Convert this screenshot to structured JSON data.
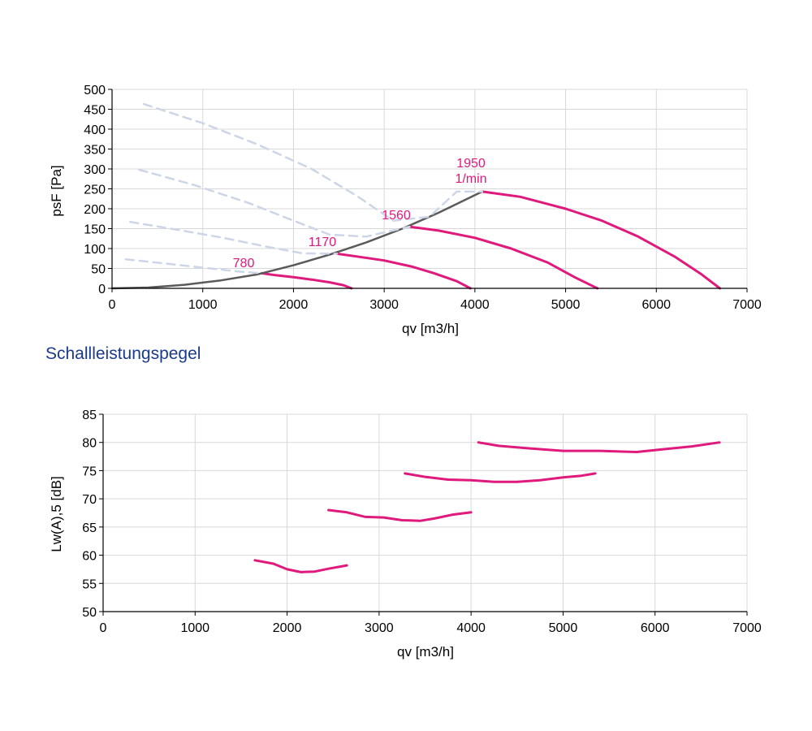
{
  "colors": {
    "curve": "#e0197d",
    "system_line": "#5a5a5a",
    "dashed": "#ccd6e6",
    "grid": "#d8d8d8",
    "axis": "#000000",
    "section_title": "#1a3a8c"
  },
  "section_title": "Schallleistungspegel",
  "chart_data": [
    {
      "type": "line",
      "xlabel": "qv [m3/h]",
      "ylabel": "psF [Pa]",
      "xlim": [
        0,
        7000
      ],
      "ylim": [
        0,
        500
      ],
      "xticks": [
        "0",
        "1000",
        "2000",
        "3000",
        "4000",
        "5000",
        "6000",
        "7000"
      ],
      "yticks": [
        "0",
        "50",
        "100",
        "150",
        "200",
        "250",
        "300",
        "350",
        "400",
        "450",
        "500"
      ],
      "grid": true,
      "annotations": [
        "780",
        "1170",
        "1560",
        "1950",
        "1/min"
      ],
      "series": [
        {
          "name": "780",
          "color": "curve",
          "style": "solid",
          "x": [
            1650,
            1800,
            2000,
            2200,
            2400,
            2550,
            2640
          ],
          "y": [
            38,
            33,
            28,
            22,
            15,
            8,
            0
          ]
        },
        {
          "name": "1170",
          "color": "curve",
          "style": "solid",
          "x": [
            2480,
            2700,
            3000,
            3300,
            3550,
            3800,
            3950
          ],
          "y": [
            87,
            80,
            70,
            55,
            38,
            18,
            0
          ]
        },
        {
          "name": "1560",
          "color": "curve",
          "style": "solid",
          "x": [
            3280,
            3600,
            4000,
            4400,
            4800,
            5100,
            5350
          ],
          "y": [
            155,
            145,
            127,
            100,
            65,
            28,
            0
          ]
        },
        {
          "name": "1950",
          "color": "curve",
          "style": "solid",
          "x": [
            4080,
            4500,
            5000,
            5400,
            5800,
            6200,
            6500,
            6700
          ],
          "y": [
            243,
            230,
            200,
            170,
            130,
            80,
            35,
            0
          ]
        },
        {
          "color": "system_line",
          "style": "solid",
          "x": [
            0,
            400,
            800,
            1200,
            1600,
            2000,
            2400,
            2800,
            3200,
            3600,
            4080
          ],
          "y": [
            0,
            2,
            9,
            20,
            35,
            58,
            85,
            115,
            150,
            190,
            243
          ]
        },
        {
          "color": "dashed",
          "style": "dashed",
          "x": [
            150,
            600,
            1000,
            1400,
            1650
          ],
          "y": [
            73,
            62,
            52,
            42,
            38
          ]
        },
        {
          "color": "dashed",
          "style": "dashed",
          "x": [
            200,
            700,
            1200,
            1700,
            2100,
            2480
          ],
          "y": [
            167,
            148,
            128,
            105,
            88,
            87
          ]
        },
        {
          "color": "dashed",
          "style": "dashed",
          "x": [
            300,
            900,
            1500,
            2000,
            2400,
            2800,
            3280
          ],
          "y": [
            298,
            260,
            215,
            170,
            135,
            130,
            155
          ]
        },
        {
          "color": "dashed",
          "style": "dashed",
          "x": [
            350,
            1000,
            1600,
            2200,
            2700,
            3100,
            3500,
            3800,
            4080
          ],
          "y": [
            463,
            415,
            362,
            300,
            232,
            170,
            180,
            243,
            243
          ]
        }
      ]
    },
    {
      "type": "line",
      "xlabel": "qv [m3/h]",
      "ylabel": "Lw(A),5 [dB]",
      "xlim": [
        0,
        7000
      ],
      "ylim": [
        50,
        85
      ],
      "xticks": [
        "0",
        "1000",
        "2000",
        "3000",
        "4000",
        "5000",
        "6000",
        "7000"
      ],
      "yticks": [
        "50",
        "55",
        "60",
        "65",
        "70",
        "75",
        "80",
        "85"
      ],
      "grid": true,
      "series": [
        {
          "color": "curve",
          "style": "solid",
          "x": [
            1650,
            1850,
            2000,
            2150,
            2300,
            2450,
            2650
          ],
          "y": [
            59.1,
            58.5,
            57.5,
            57.0,
            57.1,
            57.6,
            58.2
          ]
        },
        {
          "color": "curve",
          "style": "solid",
          "x": [
            2450,
            2650,
            2850,
            3050,
            3250,
            3450,
            3600,
            3800,
            4000
          ],
          "y": [
            68.0,
            67.6,
            66.8,
            66.7,
            66.2,
            66.1,
            66.5,
            67.2,
            67.6
          ]
        },
        {
          "color": "curve",
          "style": "solid",
          "x": [
            3280,
            3500,
            3750,
            4000,
            4250,
            4500,
            4750,
            5000,
            5200,
            5350
          ],
          "y": [
            74.5,
            73.9,
            73.4,
            73.3,
            73.0,
            73.0,
            73.3,
            73.8,
            74.1,
            74.5
          ]
        },
        {
          "color": "curve",
          "style": "solid",
          "x": [
            4080,
            4300,
            4600,
            5000,
            5400,
            5800,
            6100,
            6400,
            6700
          ],
          "y": [
            80.0,
            79.4,
            79.0,
            78.5,
            78.5,
            78.3,
            78.8,
            79.3,
            80.0
          ]
        }
      ]
    }
  ]
}
